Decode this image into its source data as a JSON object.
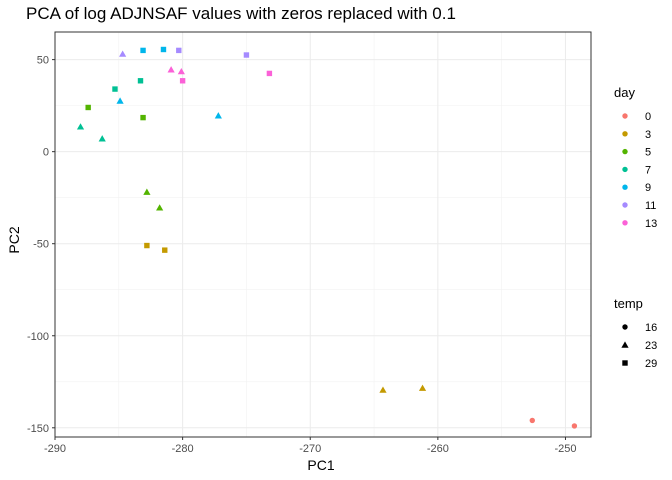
{
  "chart_data": {
    "type": "scatter",
    "title": "PCA of log ADJNSAF values with zeros replaced with 0.1",
    "xlabel": "PC1",
    "ylabel": "PC2",
    "xlim": [
      -290,
      -248
    ],
    "ylim": [
      -155,
      65
    ],
    "xticks": [
      -290,
      -280,
      -270,
      -260,
      -250
    ],
    "yticks": [
      -150,
      -100,
      -50,
      0,
      50
    ],
    "xtick_labels": [
      "-290",
      "-280",
      "-270",
      "-260",
      "-250"
    ],
    "ytick_labels": [
      "-150",
      "-100",
      "-50",
      "0",
      "50"
    ],
    "grid": true,
    "legend_placement": "right",
    "legends": [
      {
        "title": "day",
        "type": "color",
        "items": [
          {
            "label": "0",
            "value": 0,
            "color": "#F8766D"
          },
          {
            "label": "3",
            "value": 3,
            "color": "#C49A00"
          },
          {
            "label": "5",
            "value": 5,
            "color": "#53B400"
          },
          {
            "label": "7",
            "value": 7,
            "color": "#00C094"
          },
          {
            "label": "9",
            "value": 9,
            "color": "#00B6EB"
          },
          {
            "label": "11",
            "value": 11,
            "color": "#A58AFF"
          },
          {
            "label": "13",
            "value": 13,
            "color": "#FB61D7"
          }
        ]
      },
      {
        "title": "temp",
        "type": "shape",
        "items": [
          {
            "label": "16",
            "value": 16,
            "shape": "circle"
          },
          {
            "label": "23",
            "value": 23,
            "shape": "triangle"
          },
          {
            "label": "29",
            "value": 29,
            "shape": "square"
          }
        ]
      }
    ],
    "points": [
      {
        "x": -252.6,
        "y": -146,
        "day": 0,
        "temp": 16
      },
      {
        "x": -249.3,
        "y": -149,
        "day": 0,
        "temp": 16
      },
      {
        "x": -264.3,
        "y": -129.5,
        "day": 3,
        "temp": 23
      },
      {
        "x": -261.2,
        "y": -128.5,
        "day": 3,
        "temp": 23
      },
      {
        "x": -282.8,
        "y": -51,
        "day": 3,
        "temp": 29
      },
      {
        "x": -281.4,
        "y": -53.5,
        "day": 3,
        "temp": 29
      },
      {
        "x": -282.8,
        "y": -22,
        "day": 5,
        "temp": 23
      },
      {
        "x": -281.8,
        "y": -30.5,
        "day": 5,
        "temp": 23
      },
      {
        "x": -287.4,
        "y": 24,
        "day": 5,
        "temp": 29
      },
      {
        "x": -283.1,
        "y": 18.5,
        "day": 5,
        "temp": 29
      },
      {
        "x": -288.0,
        "y": 13.5,
        "day": 7,
        "temp": 23
      },
      {
        "x": -286.3,
        "y": 7,
        "day": 7,
        "temp": 23
      },
      {
        "x": -285.3,
        "y": 34,
        "day": 7,
        "temp": 29
      },
      {
        "x": -283.3,
        "y": 38.5,
        "day": 7,
        "temp": 29
      },
      {
        "x": -284.9,
        "y": 27.5,
        "day": 9,
        "temp": 23
      },
      {
        "x": -277.2,
        "y": 19.5,
        "day": 9,
        "temp": 23
      },
      {
        "x": -283.1,
        "y": 55,
        "day": 9,
        "temp": 29
      },
      {
        "x": -281.5,
        "y": 55.5,
        "day": 9,
        "temp": 29
      },
      {
        "x": -284.7,
        "y": 53,
        "day": 11,
        "temp": 23
      },
      {
        "x": -280.3,
        "y": 55,
        "day": 11,
        "temp": 29
      },
      {
        "x": -275.0,
        "y": 52.5,
        "day": 11,
        "temp": 29
      },
      {
        "x": -280.9,
        "y": 44.5,
        "day": 13,
        "temp": 23
      },
      {
        "x": -280.1,
        "y": 43.5,
        "day": 13,
        "temp": 23
      },
      {
        "x": -280.0,
        "y": 38.5,
        "day": 13,
        "temp": 29
      },
      {
        "x": -273.2,
        "y": 42.5,
        "day": 13,
        "temp": 29
      }
    ]
  }
}
